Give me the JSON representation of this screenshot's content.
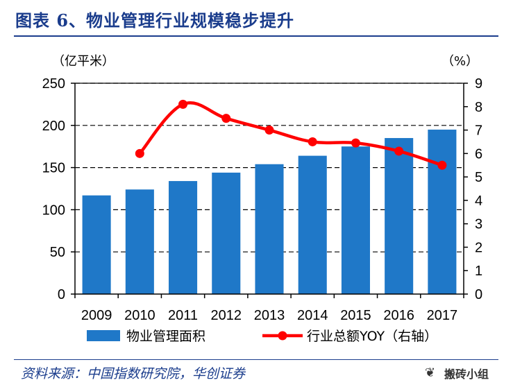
{
  "title": "图表 6、物业管理行业规模稳步提升",
  "source": "资料来源：中国指数研究院，华创证券",
  "watermark": "搬砖小组",
  "watermark_icon": "wechat-icon",
  "colors": {
    "bar": "#1f78c8",
    "line": "#ff0000",
    "title": "#1a3c8c"
  },
  "chart_data": {
    "type": "bar",
    "categories": [
      "2009",
      "2010",
      "2011",
      "2012",
      "2013",
      "2014",
      "2015",
      "2016",
      "2017"
    ],
    "series": [
      {
        "name": "物业管理面积",
        "type": "bar",
        "axis": "left",
        "values": [
          117,
          124,
          134,
          144,
          154,
          164,
          175,
          185,
          195
        ]
      },
      {
        "name": "行业总额YOY（右轴）",
        "type": "line",
        "axis": "right",
        "values": [
          null,
          6.0,
          8.1,
          7.5,
          7.0,
          6.5,
          6.45,
          6.1,
          5.5
        ]
      }
    ],
    "left_axis": {
      "unit": "（亿平米）",
      "ylim": [
        0,
        250
      ],
      "ticks": [
        "0",
        "50",
        "100",
        "150",
        "200",
        "250"
      ]
    },
    "right_axis": {
      "unit": "（%）",
      "ylim": [
        0,
        9
      ],
      "ticks": [
        "0",
        "1",
        "2",
        "3",
        "4",
        "5",
        "6",
        "7",
        "8",
        "9"
      ]
    },
    "grid": "dashed-horizontal",
    "legend": "bottom"
  }
}
